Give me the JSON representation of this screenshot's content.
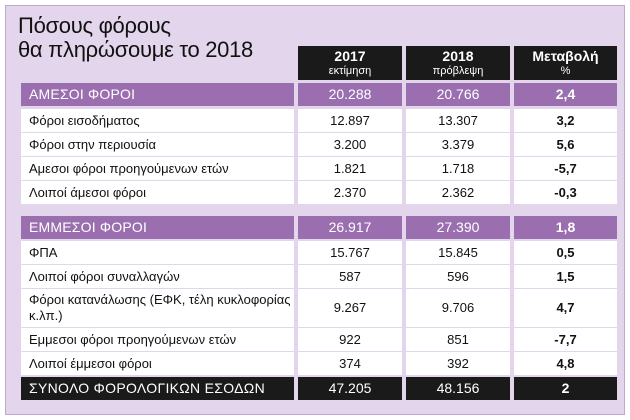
{
  "title": {
    "line1": "Πόσους φόρους",
    "line2": "θα πληρώσουμε το 2018"
  },
  "columns": [
    {
      "main": "2017",
      "sub": "εκτίμηση"
    },
    {
      "main": "2018",
      "sub": "πρόβλεψη"
    },
    {
      "main": "Μεταβολή",
      "sub": "%"
    }
  ],
  "rows": [
    {
      "label": "ΑΜΕΣΟΙ ΦΟΡΟΙ",
      "v2017": "20.288",
      "v2018": "20.766",
      "change": "2,4"
    },
    {
      "label": "Φόροι εισοδήματος",
      "v2017": "12.897",
      "v2018": "13.307",
      "change": "3,2"
    },
    {
      "label": "Φόροι στην περιουσία",
      "v2017": "3.200",
      "v2018": "3.379",
      "change": "5,6"
    },
    {
      "label": "Αμεσοι φόροι προηγούμενων ετών",
      "v2017": "1.821",
      "v2018": "1.718",
      "change": "-5,7"
    },
    {
      "label": "Λοιποί άμεσοι φόροι",
      "v2017": "2.370",
      "v2018": "2.362",
      "change": "-0,3"
    },
    {
      "label": "ΕΜΜΕΣΟΙ ΦΟΡΟΙ",
      "v2017": "26.917",
      "v2018": "27.390",
      "change": "1,8"
    },
    {
      "label": "ΦΠΑ",
      "v2017": "15.767",
      "v2018": "15.845",
      "change": "0,5"
    },
    {
      "label": "Λοιποί φόροι συναλλαγών",
      "v2017": "587",
      "v2018": "596",
      "change": "1,5"
    },
    {
      "label": "Φόροι κατανάλωσης (ΕΦΚ, τέλη κυκλοφορίας κ.λπ.)",
      "v2017": "9.267",
      "v2018": "9.706",
      "change": "4,7"
    },
    {
      "label": "Εμμεσοι φόροι προηγούμενων ετών",
      "v2017": "922",
      "v2018": "851",
      "change": "-7,7"
    },
    {
      "label": "Λοιποί έμμεσοι φόροι",
      "v2017": "374",
      "v2018": "392",
      "change": "4,8"
    },
    {
      "label": "ΣΥΝΟΛΟ ΦΟΡΟΛΟΓΙΚΩΝ ΕΣΟΔΩΝ",
      "v2017": "47.205",
      "v2018": "48.156",
      "change": "2"
    }
  ],
  "colors": {
    "background": "#e3d6ec",
    "section_header": "#9b6faf",
    "dark_header": "#1a1a1a",
    "row": "#ffffff"
  }
}
